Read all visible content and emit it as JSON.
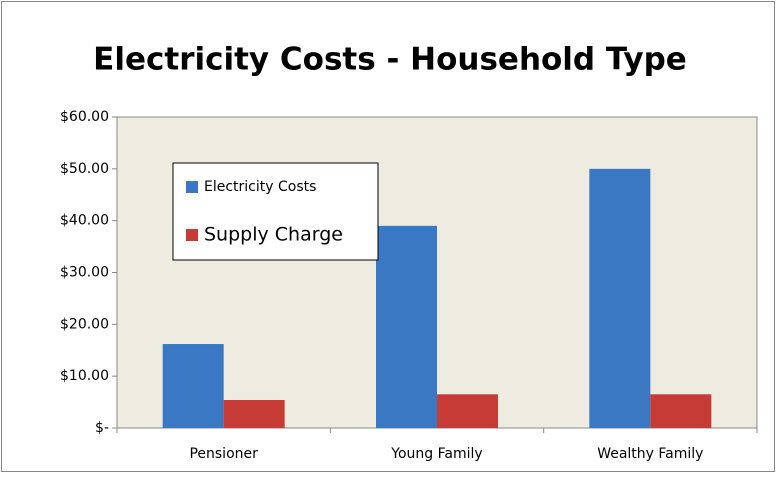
{
  "chart_data": {
    "type": "bar",
    "title": "Electricity Costs - Household Type",
    "categories": [
      "Pensioner",
      "Young Family",
      "Wealthy Family"
    ],
    "series": [
      {
        "name": "Electricity Costs",
        "color": "#3b78c4",
        "values": [
          16.2,
          39.0,
          50.0
        ]
      },
      {
        "name": "Supply Charge",
        "color": "#c63b36",
        "values": [
          5.4,
          6.5,
          6.5
        ]
      }
    ],
    "ylim": [
      0,
      60
    ],
    "yticks": [
      {
        "value": 0,
        "label": "$-"
      },
      {
        "value": 10,
        "label": "$10.00"
      },
      {
        "value": 20,
        "label": "$20.00"
      },
      {
        "value": 30,
        "label": "$30.00"
      },
      {
        "value": 40,
        "label": "$40.00"
      },
      {
        "value": 50,
        "label": "$50.00"
      },
      {
        "value": 60,
        "label": "$60.00"
      }
    ],
    "grid": false,
    "legend": "upper left"
  }
}
